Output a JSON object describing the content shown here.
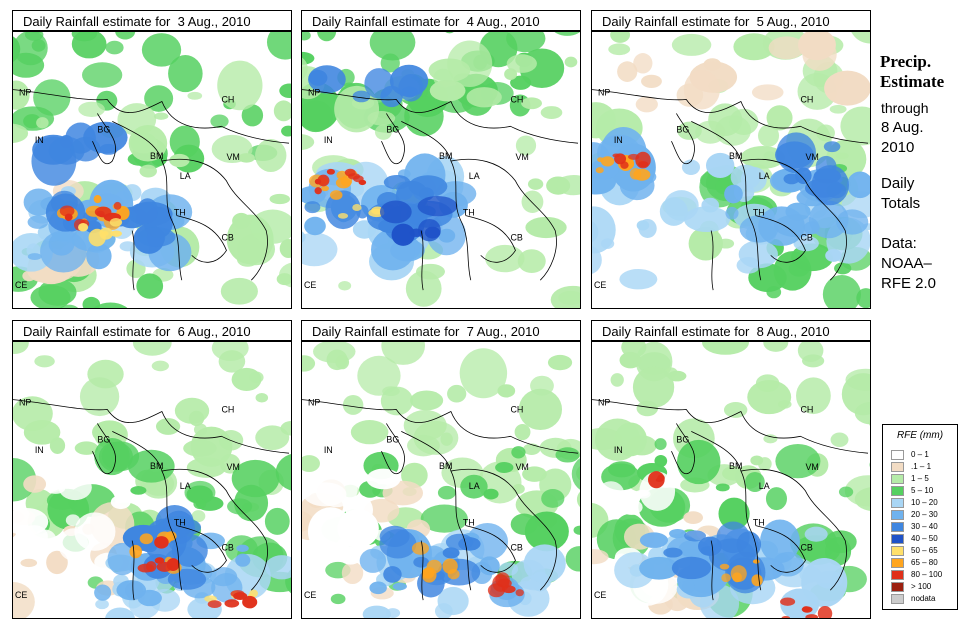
{
  "panels": [
    {
      "title": "Daily Rainfall estimate for  3 Aug., 2010",
      "scene": 0
    },
    {
      "title": "Daily Rainfall estimate for  4 Aug., 2010",
      "scene": 1
    },
    {
      "title": "Daily Rainfall estimate for  5 Aug., 2010",
      "scene": 2
    },
    {
      "title": "Daily Rainfall estimate for  6 Aug., 2010",
      "scene": 3
    },
    {
      "title": "Daily Rainfall estimate for  7 Aug., 2010",
      "scene": 4
    },
    {
      "title": "Daily Rainfall estimate for  8 Aug., 2010",
      "scene": 5
    }
  ],
  "country_labels": [
    "NP",
    "CH",
    "IN",
    "BG",
    "BM",
    "VM",
    "LA",
    "TH",
    "CB",
    "CE"
  ],
  "side": {
    "heading1": "Precip.",
    "heading2": "Estimate",
    "through": "through",
    "date1": "8 Aug.",
    "date2": "2010",
    "daily1": "Daily",
    "daily2": "Totals",
    "data1": "Data:",
    "data2": "NOAA–",
    "data3": "RFE 2.0"
  },
  "legend": {
    "title": "RFE (mm)",
    "entries": [
      {
        "label": "0 – 1",
        "color": "#ffffff"
      },
      {
        "label": ".1 – 1",
        "color": "#f2dcc4"
      },
      {
        "label": "1 – 5",
        "color": "#b5eba8"
      },
      {
        "label": "5 – 10",
        "color": "#55d060"
      },
      {
        "label": "10 – 20",
        "color": "#a9d6f5"
      },
      {
        "label": "20 – 30",
        "color": "#6fb2ee"
      },
      {
        "label": "30 – 40",
        "color": "#3f86e0"
      },
      {
        "label": "40 – 50",
        "color": "#1f52c8"
      },
      {
        "label": "50 – 65",
        "color": "#ffe06a"
      },
      {
        "label": "65 – 80",
        "color": "#ffa51e"
      },
      {
        "label": "80 – 100",
        "color": "#e0301a"
      },
      {
        "label": "> 100",
        "color": "#9c2010"
      },
      {
        "label": "nodata",
        "color": "#cccccc"
      }
    ]
  }
}
